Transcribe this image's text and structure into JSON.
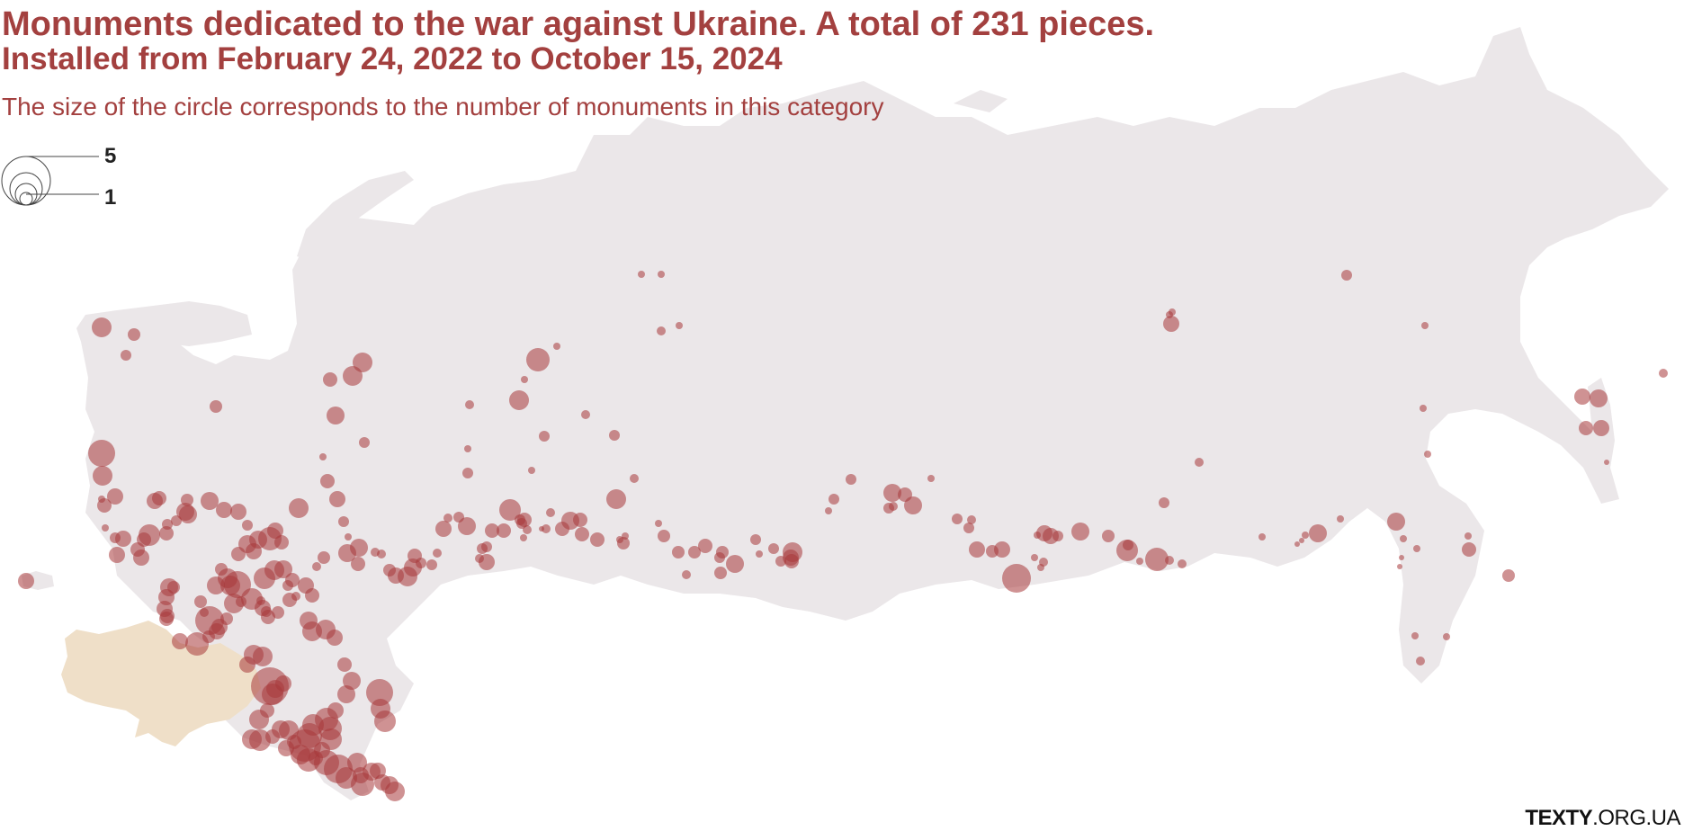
{
  "title": "Monuments dedicated to the war against Ukraine. A total of 231 pieces.",
  "subtitle": "Installed from February 24, 2022 to October 15, 2024",
  "note": "The size of the circle corresponds to the number of monuments in this category",
  "legend": {
    "max_label": "5",
    "min_label": "1"
  },
  "credit": {
    "brand": "TEXTY",
    "domain": ".ORG.UA"
  },
  "colors": {
    "land": "#ebe7e9",
    "ukraine": "#efdfc8",
    "marker": "#a8393b",
    "text": "#a3403f"
  },
  "markers_count_sample": [
    1,
    1,
    2,
    1,
    3,
    1,
    1,
    2,
    4,
    1,
    5,
    2,
    1,
    3,
    2,
    1,
    1,
    2,
    3,
    1,
    2,
    4,
    3,
    2,
    1,
    1,
    2,
    3,
    1,
    2,
    2,
    1,
    1,
    3,
    2,
    1,
    4,
    2,
    1,
    2,
    1,
    1,
    1,
    2,
    3,
    1,
    1,
    2,
    1,
    1,
    1,
    3,
    2,
    1,
    2,
    1,
    1,
    2,
    4,
    3,
    2,
    1,
    2,
    2,
    1,
    2,
    3,
    1,
    2,
    1,
    2,
    4,
    1,
    3,
    2,
    2,
    1,
    1,
    2,
    3,
    2,
    1,
    3,
    2,
    2,
    1,
    2,
    3,
    2,
    1,
    2,
    2,
    1,
    1,
    1,
    2,
    1,
    1
  ]
}
